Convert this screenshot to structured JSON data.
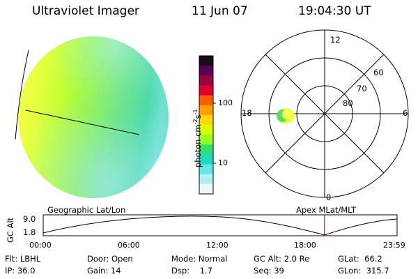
{
  "header": {
    "instrument": "Ultraviolet Imager",
    "date": "11 Jun 07",
    "time": "19:04:30 UT"
  },
  "colorbar": {
    "unit_label": "photon cm",
    "unit_exp1": "-2",
    "unit_mid": "s",
    "unit_exp2": "-1",
    "ticks": [
      "100",
      "10"
    ],
    "colors": [
      "#1a0a1a",
      "#5a005a",
      "#a0003c",
      "#e0002a",
      "#ff5a00",
      "#ffa000",
      "#ffd800",
      "#d8ff00",
      "#90ff2a",
      "#30e070",
      "#20d8c8",
      "#60e8e8",
      "#b0f0f0",
      "#e8f8f8"
    ]
  },
  "polar_plot": {
    "mlt_labels": {
      "top": "12",
      "left": "18",
      "right": "6",
      "bottom": "0"
    },
    "lat_labels": [
      "60",
      "70",
      "80"
    ]
  },
  "timeline": {
    "left_label": "Geographic Lat/Lon",
    "right_label": "Apex  MLat/MLT",
    "y_axis_label": "GC Alt",
    "y_ticks": [
      "9.0",
      "1.8"
    ],
    "x_ticks": [
      "00:00",
      "06:00",
      "12:00",
      "18:00",
      "23:59"
    ],
    "current_time_hours": 19.075,
    "marker_color": "#c00000"
  },
  "status": {
    "flt_label": "Flt:",
    "flt_value": "LBHL",
    "ip_label": "IP:",
    "ip_value": "36.0",
    "door_label": "Door:",
    "door_value": "Open",
    "gain_label": "Gain:",
    "gain_value": "14",
    "mode_label": "Mode:",
    "mode_value": "Normal",
    "dsp_label": "Dsp:",
    "dsp_value": "1.7",
    "gcalt_label": "GC Alt:",
    "gcalt_value": "2.0 Re",
    "seq_label": "Seq:",
    "seq_value": "39",
    "glat_label": "GLat:",
    "glat_value": "66.2",
    "glon_label": "GLon:",
    "glon_value": "315.7"
  }
}
